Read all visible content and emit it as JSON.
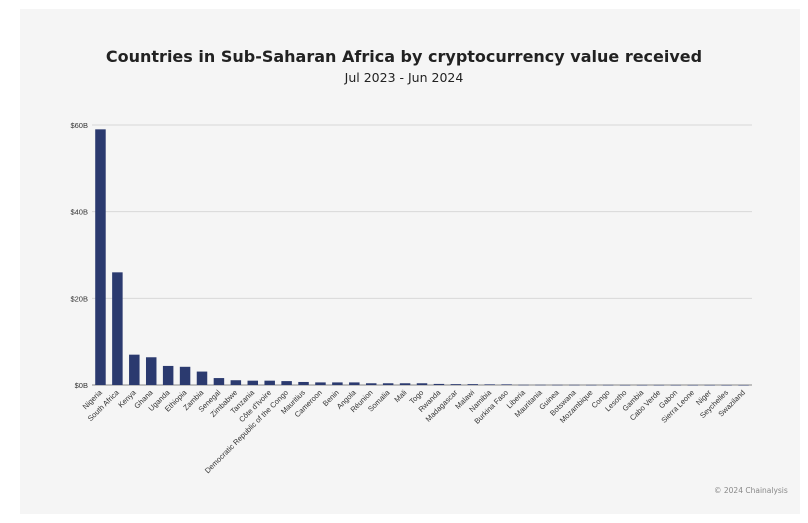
{
  "chart_data": {
    "type": "bar",
    "title": "Countries in Sub-Saharan Africa by cryptocurrency value received",
    "subtitle": "Jul 2023 - Jun 2024",
    "xlabel": "",
    "ylabel": "",
    "ylim": [
      0,
      60
    ],
    "y_ticks": [
      {
        "value": 0,
        "label": "$0B"
      },
      {
        "value": 20,
        "label": "$20B"
      },
      {
        "value": 40,
        "label": "$40B"
      },
      {
        "value": 60,
        "label": "$60B"
      }
    ],
    "grid": true,
    "bar_color": "#2b3a6f",
    "categories": [
      "Nigeria",
      "South Africa",
      "Kenya",
      "Ghana",
      "Uganda",
      "Ethiopia",
      "Zambia",
      "Senegal",
      "Zimbabwe",
      "Tanzania",
      "Côte d'Ivoire",
      "Democratic Republic of the Congo",
      "Mauritius",
      "Cameroon",
      "Benin",
      "Angola",
      "Réunion",
      "Somalia",
      "Mali",
      "Togo",
      "Rwanda",
      "Madagascar",
      "Malawi",
      "Namibia",
      "Burkina Faso",
      "Liberia",
      "Mauritania",
      "Guinea",
      "Botswana",
      "Mozambique",
      "Congo",
      "Lesotho",
      "Gambia",
      "Cabo Verde",
      "Gabon",
      "Sierra Leone",
      "Niger",
      "Seychelles",
      "Swaziland"
    ],
    "values": [
      59.0,
      26.0,
      7.0,
      6.4,
      4.4,
      4.2,
      3.1,
      1.6,
      1.1,
      1.0,
      1.0,
      0.9,
      0.7,
      0.6,
      0.6,
      0.6,
      0.4,
      0.4,
      0.4,
      0.4,
      0.25,
      0.2,
      0.2,
      0.15,
      0.15,
      0.05,
      0.05,
      0.04,
      0.04,
      0.03,
      0.03,
      0.02,
      0.02,
      0.02,
      0.02,
      0.02,
      0.02,
      0.01,
      0.01
    ]
  },
  "footer": {
    "copyright": "© 2024 Chainalysis"
  }
}
